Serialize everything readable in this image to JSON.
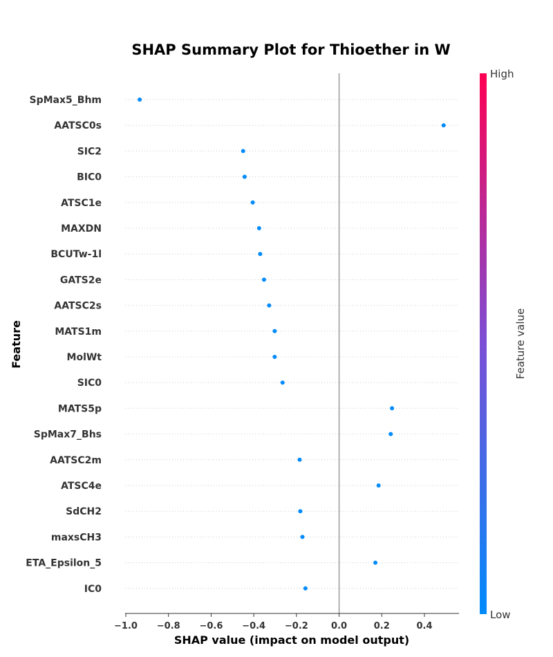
{
  "chart_data": {
    "type": "scatter",
    "title": "SHAP Summary Plot for Thioether in W",
    "xlabel": "SHAP value (impact on model output)",
    "ylabel": "Feature",
    "xlim": [
      -1.03,
      0.56
    ],
    "xticks": [
      -1.0,
      -0.8,
      -0.6,
      -0.4,
      -0.2,
      0.0,
      0.2,
      0.4
    ],
    "xtick_labels": [
      "−1.0",
      "−0.8",
      "−0.6",
      "−0.4",
      "−0.2",
      "0.0",
      "0.2",
      "0.4"
    ],
    "grid": "horizontal dotted per feature",
    "zero_line": true,
    "point_color": "#008bfb",
    "colorbar": {
      "label": "Feature value",
      "high_label": "High",
      "low_label": "Low",
      "high_color": "#ff0052",
      "mid_color": "#7b4fd6",
      "low_color": "#008bfb"
    },
    "features": [
      "SpMax5_Bhm",
      "AATSC0s",
      "SIC2",
      "BIC0",
      "ATSC1e",
      "MAXDN",
      "BCUTw-1l",
      "GATS2e",
      "AATSC2s",
      "MATS1m",
      "MolWt",
      "SIC0",
      "MATS5p",
      "SpMax7_Bhs",
      "AATSC2m",
      "ATSC4e",
      "SdCH2",
      "maxsCH3",
      "ETA_Epsilon_5",
      "IC0"
    ],
    "values": [
      -0.935,
      0.49,
      -0.45,
      -0.443,
      -0.405,
      -0.375,
      -0.37,
      -0.352,
      -0.328,
      -0.302,
      -0.302,
      -0.265,
      0.248,
      0.242,
      -0.185,
      0.185,
      -0.182,
      -0.172,
      0.17,
      -0.158
    ]
  }
}
